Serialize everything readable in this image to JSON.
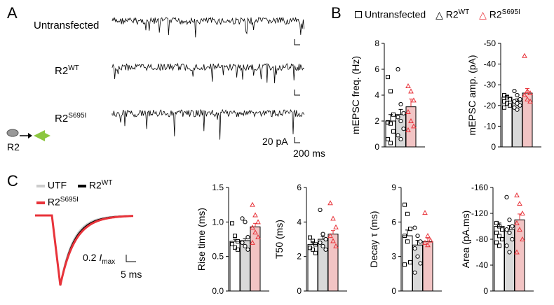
{
  "panels": {
    "a": "A",
    "b": "B",
    "c": "C"
  },
  "panel_a": {
    "rows": [
      {
        "base": "Untransfected",
        "sup": ""
      },
      {
        "base": "R2",
        "sup": "WT"
      },
      {
        "base": "R2",
        "sup": "S695I"
      }
    ],
    "scale_current": "20 pA",
    "scale_time": "200 ms",
    "schematic_label": "R2"
  },
  "legend_b": [
    {
      "symbol": "square",
      "color": "#000000",
      "base": "Untransfected",
      "sup": ""
    },
    {
      "symbol": "triangle",
      "color": "#000000",
      "base": "R2",
      "sup": "WT"
    },
    {
      "symbol": "triangle",
      "color": "#e8333a",
      "base": "R2",
      "sup": "S695I"
    }
  ],
  "legend_c": [
    {
      "color": "#cccccc",
      "label": "UTF",
      "sup": ""
    },
    {
      "color": "#000000",
      "label": "R2",
      "sup": "WT"
    },
    {
      "color": "#e8333a",
      "label": "R2",
      "sup": "S695I"
    }
  ],
  "trace_scale": {
    "amp": "0.2 ",
    "imax": "I",
    "imax_sub": "max",
    "time": "5 ms"
  },
  "colors": {
    "utf": "#cccccc",
    "wt": "#999999",
    "mut": "#e8333a",
    "mut_fill": "#f2c4c4",
    "utf_bar": "#ffffff",
    "wt_bar": "#d9d9d9"
  },
  "chart_data": [
    {
      "type": "bar",
      "ylabel": "mEPSC freq. (Hz)",
      "ylim": [
        0,
        8
      ],
      "yticks": [
        "0",
        "2",
        "4",
        "6",
        "8"
      ],
      "categories": [
        "Untransfected",
        "R2WT",
        "R2S695I"
      ],
      "values": [
        2.0,
        2.5,
        3.1
      ],
      "errors": [
        0.5,
        0.4,
        0.6
      ],
      "points": [
        [
          5.4,
          4.3,
          2.5,
          1.9,
          1.8,
          1.2,
          0.6,
          0.3
        ],
        [
          6.0,
          3.3,
          2.6,
          2.3,
          2.0,
          1.4,
          0.9,
          0.6
        ],
        [
          4.7,
          4.3,
          3.6,
          2.7,
          2.0,
          1.6,
          1.3
        ]
      ]
    },
    {
      "type": "bar",
      "ylabel": "mEPSC amp. (pA)",
      "ylim": [
        0,
        -50
      ],
      "inverted": true,
      "yticks": [
        "0",
        "-10",
        "-20",
        "-30",
        "-40",
        "-50"
      ],
      "categories": [
        "Untransfected",
        "R2WT",
        "R2S695I"
      ],
      "values": [
        -24,
        -22,
        -26
      ],
      "errors": [
        1.0,
        1.2,
        2.2
      ],
      "points": [
        [
          -25,
          -24,
          -23,
          -22,
          -21,
          -20,
          -19
        ],
        [
          -27,
          -25,
          -23,
          -22,
          -21,
          -20,
          -19,
          -18
        ],
        [
          -44,
          -27,
          -26,
          -25,
          -23,
          -22
        ]
      ]
    },
    {
      "type": "bar",
      "ylabel": "Rise time (ms)",
      "ylim": [
        0,
        1.5
      ],
      "yticks": [
        "0.0",
        "0.5",
        "1.0",
        "1.5"
      ],
      "categories": [
        "UTF",
        "R2WT",
        "R2S695I"
      ],
      "values": [
        0.72,
        0.73,
        0.93
      ],
      "errors": [
        0.03,
        0.03,
        0.05
      ],
      "points": [
        [
          0.98,
          0.8,
          0.72,
          0.68,
          0.63,
          0.6
        ],
        [
          1.05,
          1.0,
          0.78,
          0.7,
          0.65,
          0.6
        ],
        [
          1.25,
          1.1,
          1.0,
          0.92,
          0.85,
          0.78,
          0.7
        ]
      ]
    },
    {
      "type": "bar",
      "ylabel": "T50 (ms)",
      "ylim": [
        0,
        6
      ],
      "yticks": [
        "0",
        "2",
        "4",
        "6"
      ],
      "categories": [
        "UTF",
        "R2WT",
        "R2S695I"
      ],
      "values": [
        2.7,
        3.0,
        3.3
      ],
      "errors": [
        0.15,
        0.15,
        0.2
      ],
      "points": [
        [
          3.1,
          2.9,
          2.7,
          2.5,
          2.4,
          2.2
        ],
        [
          4.7,
          3.3,
          3.0,
          2.8,
          2.6,
          2.4
        ],
        [
          5.1,
          4.2,
          3.7,
          3.2,
          2.9,
          2.6
        ]
      ]
    },
    {
      "type": "bar",
      "ylabel": "Decay τ (ms)",
      "ylim": [
        0,
        9
      ],
      "yticks": [
        "0",
        "3",
        "6",
        "9"
      ],
      "categories": [
        "UTF",
        "R2WT",
        "R2S695I"
      ],
      "values": [
        4.8,
        4.0,
        4.3
      ],
      "errors": [
        0.5,
        0.4,
        0.3
      ],
      "points": [
        [
          7.5,
          6.7,
          5.4,
          4.8,
          4.3,
          2.5,
          2.3
        ],
        [
          5.5,
          4.8,
          4.3,
          3.7,
          3.0,
          2.4,
          1.6
        ],
        [
          6.8,
          4.8,
          4.4,
          4.2,
          4.0
        ]
      ]
    },
    {
      "type": "bar",
      "ylabel": "Area (pA.ms)",
      "ylim": [
        0,
        -160
      ],
      "inverted": true,
      "yticks": [
        "0",
        "-40",
        "-80",
        "-120",
        "-160"
      ],
      "categories": [
        "UTF",
        "R2WT",
        "R2S695I"
      ],
      "values": [
        -100,
        -95,
        -110
      ],
      "errors": [
        5,
        6,
        9
      ],
      "points": [
        [
          -105,
          -100,
          -95,
          -90,
          -85,
          -80,
          -75,
          -70
        ],
        [
          -145,
          -110,
          -100,
          -95,
          -90,
          -80,
          -70,
          -60
        ],
        [
          -148,
          -135,
          -120,
          -105,
          -95,
          -80,
          -60
        ]
      ]
    }
  ]
}
